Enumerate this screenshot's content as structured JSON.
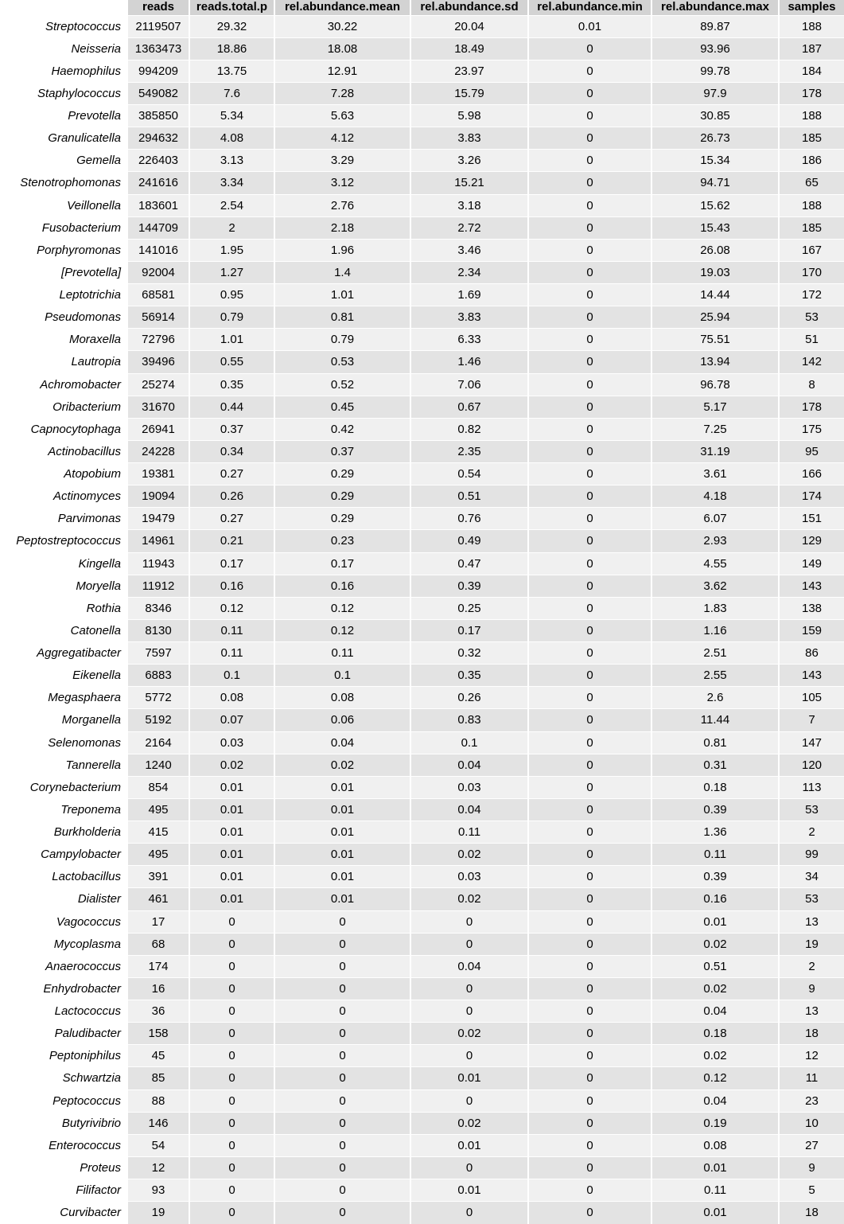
{
  "table": {
    "columns": [
      "reads",
      "reads.total.p",
      "rel.abundance.mean",
      "rel.abundance.sd",
      "rel.abundance.min",
      "rel.abundance.max",
      "samples"
    ],
    "rows": [
      [
        "Streptococcus",
        "2119507",
        "29.32",
        "30.22",
        "20.04",
        "0.01",
        "89.87",
        "188"
      ],
      [
        "Neisseria",
        "1363473",
        "18.86",
        "18.08",
        "18.49",
        "0",
        "93.96",
        "187"
      ],
      [
        "Haemophilus",
        "994209",
        "13.75",
        "12.91",
        "23.97",
        "0",
        "99.78",
        "184"
      ],
      [
        "Staphylococcus",
        "549082",
        "7.6",
        "7.28",
        "15.79",
        "0",
        "97.9",
        "178"
      ],
      [
        "Prevotella",
        "385850",
        "5.34",
        "5.63",
        "5.98",
        "0",
        "30.85",
        "188"
      ],
      [
        "Granulicatella",
        "294632",
        "4.08",
        "4.12",
        "3.83",
        "0",
        "26.73",
        "185"
      ],
      [
        "Gemella",
        "226403",
        "3.13",
        "3.29",
        "3.26",
        "0",
        "15.34",
        "186"
      ],
      [
        "Stenotrophomonas",
        "241616",
        "3.34",
        "3.12",
        "15.21",
        "0",
        "94.71",
        "65"
      ],
      [
        "Veillonella",
        "183601",
        "2.54",
        "2.76",
        "3.18",
        "0",
        "15.62",
        "188"
      ],
      [
        "Fusobacterium",
        "144709",
        "2",
        "2.18",
        "2.72",
        "0",
        "15.43",
        "185"
      ],
      [
        "Porphyromonas",
        "141016",
        "1.95",
        "1.96",
        "3.46",
        "0",
        "26.08",
        "167"
      ],
      [
        "[Prevotella]",
        "92004",
        "1.27",
        "1.4",
        "2.34",
        "0",
        "19.03",
        "170"
      ],
      [
        "Leptotrichia",
        "68581",
        "0.95",
        "1.01",
        "1.69",
        "0",
        "14.44",
        "172"
      ],
      [
        "Pseudomonas",
        "56914",
        "0.79",
        "0.81",
        "3.83",
        "0",
        "25.94",
        "53"
      ],
      [
        "Moraxella",
        "72796",
        "1.01",
        "0.79",
        "6.33",
        "0",
        "75.51",
        "51"
      ],
      [
        "Lautropia",
        "39496",
        "0.55",
        "0.53",
        "1.46",
        "0",
        "13.94",
        "142"
      ],
      [
        "Achromobacter",
        "25274",
        "0.35",
        "0.52",
        "7.06",
        "0",
        "96.78",
        "8"
      ],
      [
        "Oribacterium",
        "31670",
        "0.44",
        "0.45",
        "0.67",
        "0",
        "5.17",
        "178"
      ],
      [
        "Capnocytophaga",
        "26941",
        "0.37",
        "0.42",
        "0.82",
        "0",
        "7.25",
        "175"
      ],
      [
        "Actinobacillus",
        "24228",
        "0.34",
        "0.37",
        "2.35",
        "0",
        "31.19",
        "95"
      ],
      [
        "Atopobium",
        "19381",
        "0.27",
        "0.29",
        "0.54",
        "0",
        "3.61",
        "166"
      ],
      [
        "Actinomyces",
        "19094",
        "0.26",
        "0.29",
        "0.51",
        "0",
        "4.18",
        "174"
      ],
      [
        "Parvimonas",
        "19479",
        "0.27",
        "0.29",
        "0.76",
        "0",
        "6.07",
        "151"
      ],
      [
        "Peptostreptococcus",
        "14961",
        "0.21",
        "0.23",
        "0.49",
        "0",
        "2.93",
        "129"
      ],
      [
        "Kingella",
        "11943",
        "0.17",
        "0.17",
        "0.47",
        "0",
        "4.55",
        "149"
      ],
      [
        "Moryella",
        "11912",
        "0.16",
        "0.16",
        "0.39",
        "0",
        "3.62",
        "143"
      ],
      [
        "Rothia",
        "8346",
        "0.12",
        "0.12",
        "0.25",
        "0",
        "1.83",
        "138"
      ],
      [
        "Catonella",
        "8130",
        "0.11",
        "0.12",
        "0.17",
        "0",
        "1.16",
        "159"
      ],
      [
        "Aggregatibacter",
        "7597",
        "0.11",
        "0.11",
        "0.32",
        "0",
        "2.51",
        "86"
      ],
      [
        "Eikenella",
        "6883",
        "0.1",
        "0.1",
        "0.35",
        "0",
        "2.55",
        "143"
      ],
      [
        "Megasphaera",
        "5772",
        "0.08",
        "0.08",
        "0.26",
        "0",
        "2.6",
        "105"
      ],
      [
        "Morganella",
        "5192",
        "0.07",
        "0.06",
        "0.83",
        "0",
        "11.44",
        "7"
      ],
      [
        "Selenomonas",
        "2164",
        "0.03",
        "0.04",
        "0.1",
        "0",
        "0.81",
        "147"
      ],
      [
        "Tannerella",
        "1240",
        "0.02",
        "0.02",
        "0.04",
        "0",
        "0.31",
        "120"
      ],
      [
        "Corynebacterium",
        "854",
        "0.01",
        "0.01",
        "0.03",
        "0",
        "0.18",
        "113"
      ],
      [
        "Treponema",
        "495",
        "0.01",
        "0.01",
        "0.04",
        "0",
        "0.39",
        "53"
      ],
      [
        "Burkholderia",
        "415",
        "0.01",
        "0.01",
        "0.11",
        "0",
        "1.36",
        "2"
      ],
      [
        "Campylobacter",
        "495",
        "0.01",
        "0.01",
        "0.02",
        "0",
        "0.11",
        "99"
      ],
      [
        "Lactobacillus",
        "391",
        "0.01",
        "0.01",
        "0.03",
        "0",
        "0.39",
        "34"
      ],
      [
        "Dialister",
        "461",
        "0.01",
        "0.01",
        "0.02",
        "0",
        "0.16",
        "53"
      ],
      [
        "Vagococcus",
        "17",
        "0",
        "0",
        "0",
        "0",
        "0.01",
        "13"
      ],
      [
        "Mycoplasma",
        "68",
        "0",
        "0",
        "0",
        "0",
        "0.02",
        "19"
      ],
      [
        "Anaerococcus",
        "174",
        "0",
        "0",
        "0.04",
        "0",
        "0.51",
        "2"
      ],
      [
        "Enhydrobacter",
        "16",
        "0",
        "0",
        "0",
        "0",
        "0.02",
        "9"
      ],
      [
        "Lactococcus",
        "36",
        "0",
        "0",
        "0",
        "0",
        "0.04",
        "13"
      ],
      [
        "Paludibacter",
        "158",
        "0",
        "0",
        "0.02",
        "0",
        "0.18",
        "18"
      ],
      [
        "Peptoniphilus",
        "45",
        "0",
        "0",
        "0",
        "0",
        "0.02",
        "12"
      ],
      [
        "Schwartzia",
        "85",
        "0",
        "0",
        "0.01",
        "0",
        "0.12",
        "11"
      ],
      [
        "Peptococcus",
        "88",
        "0",
        "0",
        "0",
        "0",
        "0.04",
        "23"
      ],
      [
        "Butyrivibrio",
        "146",
        "0",
        "0",
        "0.02",
        "0",
        "0.19",
        "10"
      ],
      [
        "Enterococcus",
        "54",
        "0",
        "0",
        "0.01",
        "0",
        "0.08",
        "27"
      ],
      [
        "Proteus",
        "12",
        "0",
        "0",
        "0",
        "0",
        "0.01",
        "9"
      ],
      [
        "Filifactor",
        "93",
        "0",
        "0",
        "0.01",
        "0",
        "0.11",
        "5"
      ],
      [
        "Curvibacter",
        "19",
        "0",
        "0",
        "0",
        "0",
        "0.01",
        "18"
      ]
    ]
  }
}
